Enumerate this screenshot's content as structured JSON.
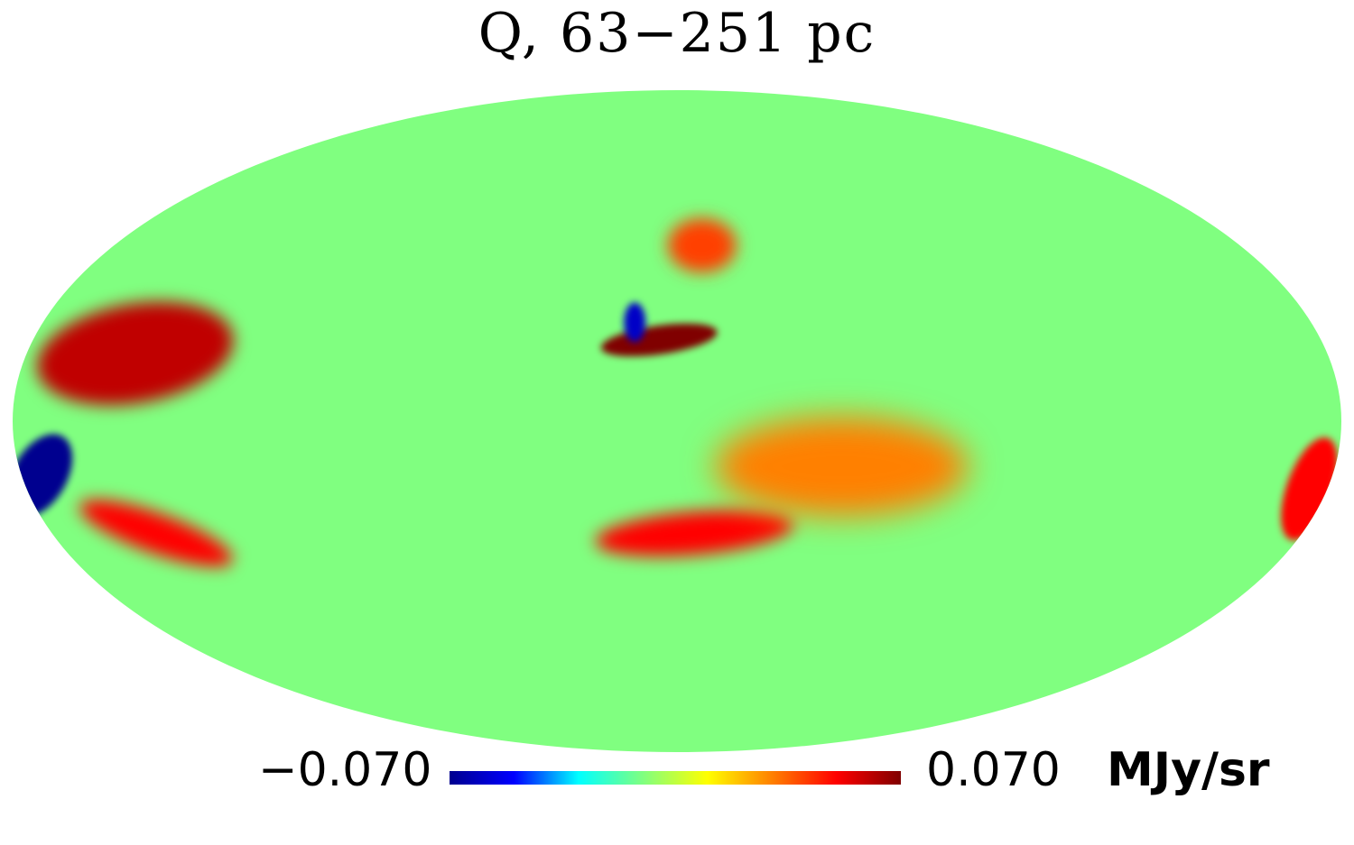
{
  "chart_data": {
    "type": "heatmap",
    "projection": "mollweide",
    "title": "Q, 63−251 pc",
    "colorbar": {
      "min_label": "−0.070",
      "max_label": "0.070",
      "unit": "MJy/sr",
      "range": [
        -0.07,
        0.07
      ],
      "colormap": "jet",
      "colors": [
        "#00008f",
        "#0000ff",
        "#00ffff",
        "#80ff80",
        "#ffff00",
        "#ff8000",
        "#ff0000",
        "#800000"
      ]
    },
    "background_value": 0.0,
    "features": [
      {
        "name": "upper-left-lobe",
        "lon": -150,
        "lat": 15,
        "value": 0.06
      },
      {
        "name": "left-edge-negative",
        "lon": -175,
        "lat": -12,
        "value": -0.07
      },
      {
        "name": "lower-left-band",
        "lon": -150,
        "lat": -25,
        "value": 0.05
      },
      {
        "name": "north-central-ridge",
        "lon": -5,
        "lat": 18,
        "value": 0.07
      },
      {
        "name": "north-central-negative",
        "lon": -12,
        "lat": 22,
        "value": -0.06
      },
      {
        "name": "upper-patch",
        "lon": 8,
        "lat": 40,
        "value": 0.04
      },
      {
        "name": "south-central-band",
        "lon": 5,
        "lat": -25,
        "value": 0.05
      },
      {
        "name": "central-right-patches",
        "lon": 45,
        "lat": -10,
        "value": 0.03
      },
      {
        "name": "right-edge-mixed",
        "lon": 175,
        "lat": -15,
        "value": 0.05
      }
    ]
  }
}
